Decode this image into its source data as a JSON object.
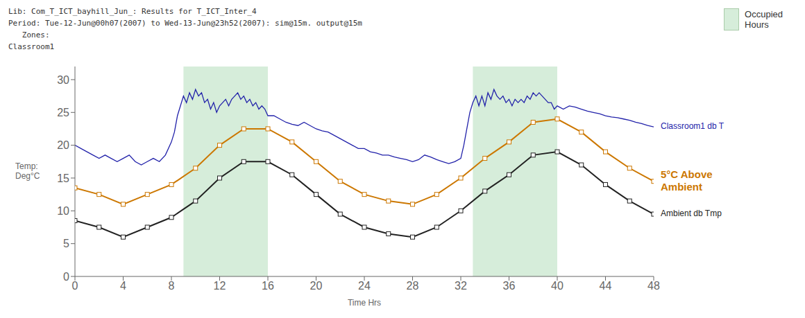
{
  "chart_data": {
    "type": "line",
    "title": "Lib: Com_T_ICT_bayhill_Jun_: Results for T_ICT_Inter_4",
    "subtitle": [
      "Period: Tue-12-Jun@00h07(2007) to Wed-13-Jun@23h52(2007): sim@15m. output@15m",
      "   Zones:",
      "Classroom1"
    ],
    "xlabel": "Time Hrs",
    "ylabel": "Temp:\nDeg°C",
    "xlim": [
      0,
      48
    ],
    "ylim": [
      0,
      32
    ],
    "xticks": [
      0,
      4,
      8,
      12,
      16,
      20,
      24,
      28,
      32,
      36,
      40,
      44,
      48
    ],
    "yticks": [
      0,
      5,
      10,
      15,
      20,
      25,
      30
    ],
    "grid": false,
    "legend": "upper right",
    "occupied_hours": {
      "label": "Occupied\nHours",
      "color": "#d6edda",
      "spans": [
        [
          9,
          16
        ],
        [
          33,
          40
        ]
      ]
    },
    "series": [
      {
        "name": "Ambient db Tmp",
        "color": "#222222",
        "marker": "square",
        "x": [
          0,
          2,
          4,
          6,
          8,
          10,
          12,
          14,
          16,
          18,
          20,
          22,
          24,
          26,
          28,
          30,
          32,
          34,
          36,
          38,
          40,
          42,
          44,
          46,
          48
        ],
        "values": [
          8.5,
          7.5,
          6.0,
          7.5,
          9.0,
          11.5,
          15.0,
          17.5,
          17.5,
          15.5,
          12.5,
          9.5,
          7.5,
          6.5,
          6.0,
          7.5,
          10.0,
          13.0,
          15.5,
          18.5,
          19.0,
          17.0,
          14.0,
          11.5,
          9.5
        ]
      },
      {
        "name": "5°C Above\nAmbient",
        "color": "#cc7700",
        "marker": "square",
        "x": [
          0,
          2,
          4,
          6,
          8,
          10,
          12,
          14,
          16,
          18,
          20,
          22,
          24,
          26,
          28,
          30,
          32,
          34,
          36,
          38,
          40,
          42,
          44,
          46,
          48
        ],
        "values": [
          13.5,
          12.5,
          11.0,
          12.5,
          14.0,
          16.5,
          20.0,
          22.5,
          22.5,
          20.5,
          17.5,
          14.5,
          12.5,
          11.5,
          11.0,
          12.5,
          15.0,
          18.0,
          20.5,
          23.5,
          24.0,
          22.0,
          19.0,
          16.5,
          14.5
        ]
      },
      {
        "name": "Classroom1 db T",
        "color": "#2222aa",
        "marker": "none",
        "x": [
          0,
          0.5,
          1,
          1.5,
          2,
          2.5,
          3,
          3.5,
          4,
          4.5,
          5,
          5.5,
          6,
          6.5,
          7,
          7.5,
          8,
          8.25,
          8.5,
          8.75,
          9,
          9.25,
          9.5,
          9.75,
          10,
          10.25,
          10.5,
          10.75,
          11,
          11.25,
          11.5,
          11.75,
          12,
          12.25,
          12.5,
          12.75,
          13,
          13.25,
          13.5,
          13.75,
          14,
          14.25,
          14.5,
          14.75,
          15,
          15.25,
          15.5,
          15.75,
          16,
          16.5,
          17,
          17.5,
          18,
          18.5,
          19,
          19.5,
          20,
          20.5,
          21,
          21.5,
          22,
          22.5,
          23,
          23.5,
          24,
          24.5,
          25,
          25.5,
          26,
          26.5,
          27,
          27.5,
          28,
          28.5,
          29,
          29.5,
          30,
          30.5,
          31,
          31.5,
          32,
          32.25,
          32.5,
          32.75,
          33,
          33.25,
          33.5,
          33.75,
          34,
          34.25,
          34.5,
          34.75,
          35,
          35.25,
          35.5,
          35.75,
          36,
          36.25,
          36.5,
          36.75,
          37,
          37.25,
          37.5,
          37.75,
          38,
          38.25,
          38.5,
          38.75,
          39,
          39.25,
          39.5,
          39.75,
          40,
          40.5,
          41,
          41.5,
          42,
          42.5,
          43,
          43.5,
          44,
          44.5,
          45,
          45.5,
          46,
          46.5,
          47,
          47.5,
          48
        ],
        "values": [
          20.0,
          19.5,
          19.0,
          18.5,
          18.0,
          18.5,
          18.0,
          17.5,
          18.0,
          18.5,
          17.5,
          17.0,
          17.5,
          18.0,
          17.5,
          18.5,
          20.5,
          22.0,
          24.5,
          26.0,
          27.5,
          26.5,
          28.0,
          27.0,
          28.5,
          27.5,
          28.0,
          26.5,
          27.0,
          25.5,
          26.5,
          25.0,
          26.0,
          26.5,
          27.0,
          26.0,
          27.0,
          27.5,
          28.0,
          27.0,
          27.5,
          26.5,
          27.0,
          26.0,
          26.5,
          25.5,
          26.0,
          25.5,
          24.5,
          24.5,
          24.0,
          23.5,
          23.2,
          23.0,
          23.5,
          23.0,
          22.5,
          22.2,
          22.0,
          21.5,
          21.0,
          20.5,
          20.0,
          19.5,
          19.5,
          19.0,
          18.8,
          18.5,
          18.5,
          18.2,
          18.0,
          17.8,
          17.5,
          17.8,
          18.5,
          18.2,
          17.8,
          17.5,
          17.2,
          17.5,
          18.0,
          20.0,
          22.5,
          25.0,
          26.5,
          27.5,
          26.0,
          27.5,
          26.0,
          28.0,
          27.0,
          28.5,
          27.5,
          27.0,
          27.5,
          26.5,
          27.0,
          26.0,
          27.0,
          26.5,
          27.0,
          26.5,
          27.5,
          27.0,
          28.0,
          27.5,
          28.0,
          27.5,
          27.0,
          26.5,
          26.5,
          25.5,
          26.0,
          25.5,
          26.0,
          25.8,
          25.5,
          25.2,
          25.0,
          24.8,
          24.5,
          24.3,
          24.2,
          24.0,
          23.8,
          23.5,
          23.3,
          23.0,
          22.8
        ]
      }
    ]
  }
}
